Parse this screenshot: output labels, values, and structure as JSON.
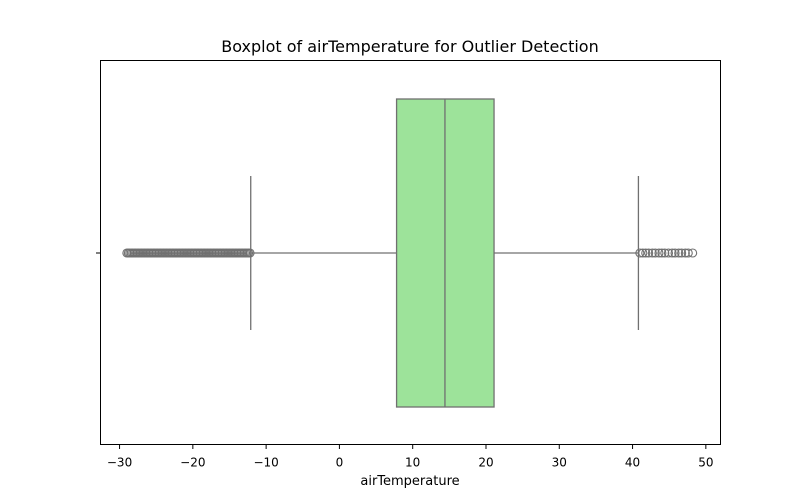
{
  "chart_data": {
    "type": "boxplot",
    "title": "Boxplot of airTemperature for Outlier Detection",
    "xlabel": "airTemperature",
    "ylabel": "",
    "orientation": "horizontal",
    "xlim": [
      -32.6,
      52.0
    ],
    "xticks": [
      -30,
      -20,
      -10,
      0,
      10,
      20,
      30,
      40,
      50
    ],
    "xtick_labels": [
      "−30",
      "−20",
      "−10",
      "0",
      "10",
      "20",
      "30",
      "40",
      "50"
    ],
    "box": {
      "whisker_low": -12.1,
      "q1": 7.8,
      "median": 14.4,
      "q3": 21.1,
      "whisker_high": 40.8
    },
    "outliers_low": [
      -29.0,
      -28.8,
      -28.6,
      -28.4,
      -28.2,
      -28.0,
      -27.8,
      -27.6,
      -27.4,
      -27.2,
      -27.0,
      -26.8,
      -26.6,
      -26.4,
      -26.2,
      -26.0,
      -25.8,
      -25.6,
      -25.4,
      -25.2,
      -25.0,
      -24.8,
      -24.6,
      -24.4,
      -24.2,
      -24.0,
      -23.8,
      -23.6,
      -23.4,
      -23.2,
      -23.0,
      -22.8,
      -22.6,
      -22.4,
      -22.2,
      -22.0,
      -21.8,
      -21.6,
      -21.4,
      -21.2,
      -21.0,
      -20.8,
      -20.6,
      -20.4,
      -20.2,
      -20.0,
      -19.8,
      -19.6,
      -19.4,
      -19.2,
      -19.0,
      -18.8,
      -18.6,
      -18.4,
      -18.2,
      -18.0,
      -17.8,
      -17.6,
      -17.4,
      -17.2,
      -17.0,
      -16.8,
      -16.6,
      -16.4,
      -16.2,
      -16.0,
      -15.8,
      -15.6,
      -15.4,
      -15.2,
      -15.0,
      -14.8,
      -14.6,
      -14.4,
      -14.2,
      -14.0,
      -13.8,
      -13.6,
      -13.4,
      -13.2,
      -13.0,
      -12.8,
      -12.6,
      -12.4,
      -12.2
    ],
    "outliers_high": [
      41.0,
      41.4,
      41.8,
      42.2,
      42.7,
      43.1,
      43.6,
      44.0,
      44.4,
      44.9,
      45.4,
      45.8,
      46.3,
      46.7,
      47.2,
      47.6,
      48.2
    ],
    "colors": {
      "box_fill": "#9de39a",
      "line": "#707070",
      "outlier_edge": "#707070",
      "axis": "#000000"
    },
    "grid": false,
    "legend": "none"
  }
}
